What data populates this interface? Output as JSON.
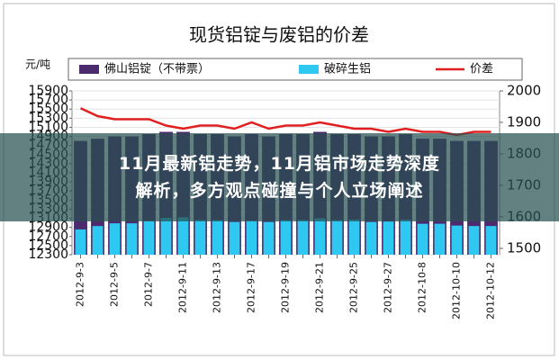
{
  "chart_data": {
    "type": "bar-line",
    "title": "现货铝锭与废铝的价差",
    "ylabel": "元/吨",
    "categories": [
      "2012-9-3",
      null,
      "2012-9-5",
      null,
      "2012-9-7",
      null,
      "2012-9-11",
      null,
      "2012-9-13",
      null,
      "2012-9-17",
      null,
      "2012-9-19",
      null,
      "2012-9-21",
      null,
      "2012-9-25",
      null,
      "2012-9-27",
      null,
      "2012-10-8",
      null,
      "2012-10-10",
      null,
      "2012-10-12"
    ],
    "series": [
      {
        "name": "佛山铝锭（不带票）",
        "color": "#4b2a6e",
        "type": "bar",
        "values": [
          14800,
          14850,
          14900,
          14900,
          14950,
          15000,
          15000,
          14950,
          14950,
          14900,
          14950,
          14900,
          14950,
          14950,
          15000,
          14950,
          14950,
          14900,
          14900,
          14950,
          14850,
          14850,
          14800,
          14800,
          14800
        ]
      },
      {
        "name": "破碎生铝",
        "color": "#2ec8f0",
        "type": "bar",
        "values": [
          12855,
          12930,
          12990,
          12990,
          13040,
          13110,
          13120,
          13060,
          13060,
          13020,
          13050,
          13020,
          13060,
          13060,
          13100,
          13060,
          13070,
          13020,
          13030,
          13070,
          12980,
          12980,
          12940,
          12930,
          12930
        ]
      },
      {
        "name": "价差",
        "color": "#e02020",
        "type": "line",
        "axis": "y2",
        "values": [
          1945,
          1920,
          1910,
          1910,
          1910,
          1890,
          1880,
          1890,
          1890,
          1880,
          1900,
          1880,
          1890,
          1890,
          1900,
          1890,
          1880,
          1880,
          1870,
          1880,
          1870,
          1870,
          1860,
          1870,
          1870
        ]
      }
    ],
    "ylim": [
      12300,
      15900
    ],
    "yticks": [
      12300,
      12500,
      12700,
      12900,
      13100,
      13300,
      13500,
      13700,
      13900,
      14100,
      14300,
      14500,
      14700,
      14900,
      15100,
      15300,
      15500,
      15700,
      15900
    ],
    "y2lim": [
      1480,
      2000
    ],
    "y2ticks": [
      1500,
      1600,
      1700,
      1800,
      1900,
      2000
    ],
    "grid": true
  },
  "banner": {
    "lines": [
      "11月最新铝走势，11月铝市场走势深度",
      "解析，多方观点碰撞与个人立场阐述"
    ]
  }
}
